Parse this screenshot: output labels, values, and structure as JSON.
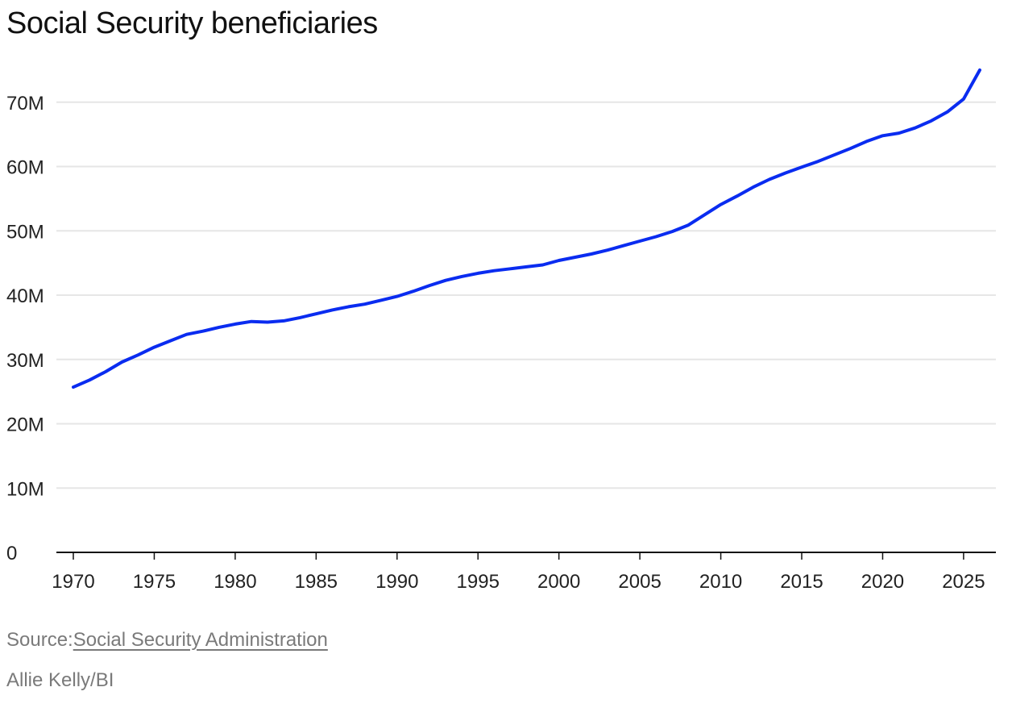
{
  "title": "Social Security beneficiaries",
  "source_prefix": "Source:",
  "source_link": "Social Security Administration",
  "credit": "Allie Kelly/BI",
  "colors": {
    "line": "#0a2cf0",
    "grid": "#e6e6e6",
    "axis": "#111111",
    "muted": "#7a7a7a"
  },
  "chart_data": {
    "type": "line",
    "title": "Social Security beneficiaries",
    "xlabel": "",
    "ylabel": "",
    "xlim": [
      1970,
      2026
    ],
    "ylim": [
      0,
      75000000
    ],
    "grid": true,
    "x_ticks": [
      1970,
      1975,
      1980,
      1985,
      1990,
      1995,
      2000,
      2005,
      2010,
      2015,
      2020,
      2025
    ],
    "x_tick_labels": [
      "1970",
      "1975",
      "1980",
      "1985",
      "1990",
      "1995",
      "2000",
      "2005",
      "2010",
      "2015",
      "2020",
      "2025"
    ],
    "y_ticks": [
      0,
      10000000,
      20000000,
      30000000,
      40000000,
      50000000,
      60000000,
      70000000
    ],
    "y_tick_labels": [
      "0",
      "10M",
      "20M",
      "30M",
      "40M",
      "50M",
      "60M",
      "70M"
    ],
    "series": [
      {
        "x": [
          1970,
          1971,
          1972,
          1973,
          1974,
          1975,
          1976,
          1977,
          1978,
          1979,
          1980,
          1981,
          1982,
          1983,
          1984,
          1985,
          1986,
          1987,
          1988,
          1989,
          1990,
          1991,
          1992,
          1993,
          1994,
          1995,
          1996,
          1997,
          1998,
          1999,
          2000,
          2001,
          2002,
          2003,
          2004,
          2005,
          2006,
          2007,
          2008,
          2009,
          2010,
          2011,
          2012,
          2013,
          2014,
          2015,
          2016,
          2017,
          2018,
          2019,
          2020,
          2021,
          2022,
          2023,
          2024,
          2025,
          2026
        ],
        "values": [
          25700000,
          26800000,
          28100000,
          29600000,
          30700000,
          31900000,
          32900000,
          33900000,
          34400000,
          35000000,
          35500000,
          35900000,
          35800000,
          36000000,
          36500000,
          37100000,
          37700000,
          38200000,
          38600000,
          39200000,
          39800000,
          40600000,
          41500000,
          42300000,
          42900000,
          43400000,
          43800000,
          44100000,
          44400000,
          44700000,
          45400000,
          45900000,
          46400000,
          47000000,
          47700000,
          48400000,
          49100000,
          49900000,
          50900000,
          52500000,
          54100000,
          55400000,
          56800000,
          58000000,
          59000000,
          59900000,
          60800000,
          61800000,
          62800000,
          63900000,
          64800000,
          65200000,
          66000000,
          67100000,
          68500000,
          70500000,
          75000000
        ]
      }
    ]
  }
}
